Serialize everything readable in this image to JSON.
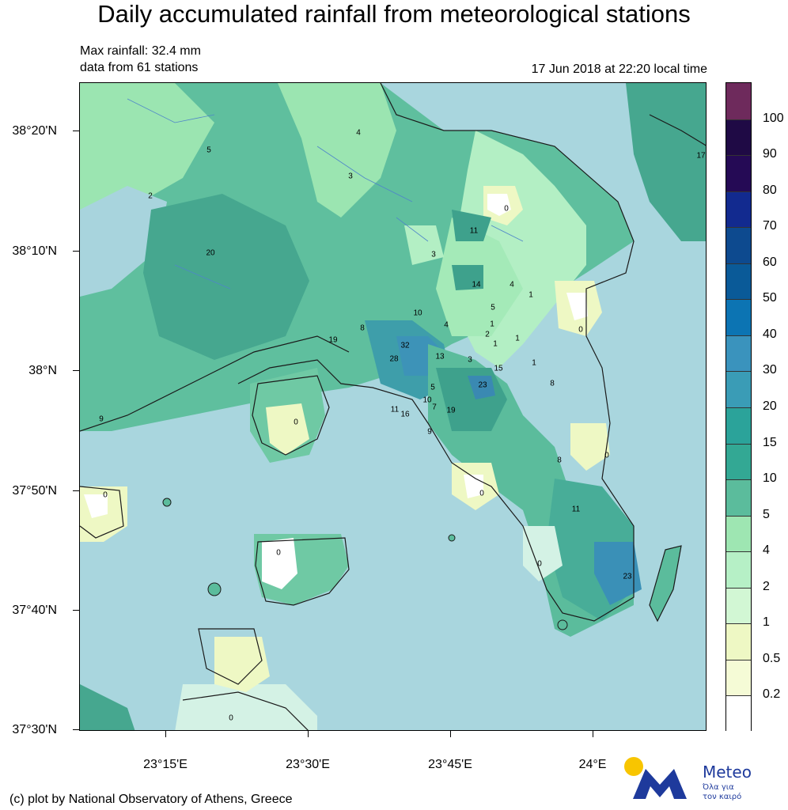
{
  "header": {
    "title": "Daily accumulated rainfall from meteorological stations",
    "max_rainfall": "Max rainfall: 32.4 mm",
    "station_count": "data from 61 stations",
    "timestamp": "17 Jun 2018 at 22:20 local time"
  },
  "map": {
    "latitude_labels": [
      "38°20'N",
      "38°10'N",
      "38°N",
      "37°50'N",
      "37°40'N",
      "37°30'N"
    ],
    "longitude_labels": [
      "23°15'E",
      "23°30'E",
      "23°45'E",
      "24°E"
    ],
    "station_values": [
      "4",
      "5",
      "3",
      "2",
      "0",
      "11",
      "20",
      "3",
      "14",
      "4",
      "1",
      "10",
      "5",
      "4",
      "1",
      "2",
      "1",
      "1",
      "0",
      "8",
      "19",
      "32",
      "28",
      "13",
      "3",
      "15",
      "1",
      "23",
      "8",
      "5",
      "10",
      "7",
      "19",
      "11",
      "16",
      "9",
      "0",
      "8",
      "0",
      "9",
      "0",
      "11",
      "0",
      "0",
      "23",
      "0",
      "0",
      "17"
    ]
  },
  "legend": {
    "labels": [
      "100",
      "90",
      "80",
      "70",
      "60",
      "50",
      "40",
      "30",
      "20",
      "15",
      "10",
      "5",
      "4",
      "2",
      "1",
      "0.5",
      "0.2"
    ],
    "colors": [
      "#6e2a5c",
      "#1f0a45",
      "#250a55",
      "#122a8f",
      "#0d4a8f",
      "#0a5a98",
      "#0c74b3",
      "#3a93bd",
      "#3a9cb6",
      "#2ba39a",
      "#33a894",
      "#5bbc9c",
      "#9ee6b2",
      "#b6f0c6",
      "#d2f7d4",
      "#eef8c4",
      "#f5fbd6",
      "#ffffff"
    ]
  },
  "footer": {
    "credit": "(c) plot by National Observatory of Athens, Greece",
    "brand_name": "Meteo",
    "brand_tagline_1": "Όλα για",
    "brand_tagline_2": "τον καιρό"
  },
  "brand_colors": {
    "primary": "#1e3a9c",
    "sun": "#f8c500"
  }
}
